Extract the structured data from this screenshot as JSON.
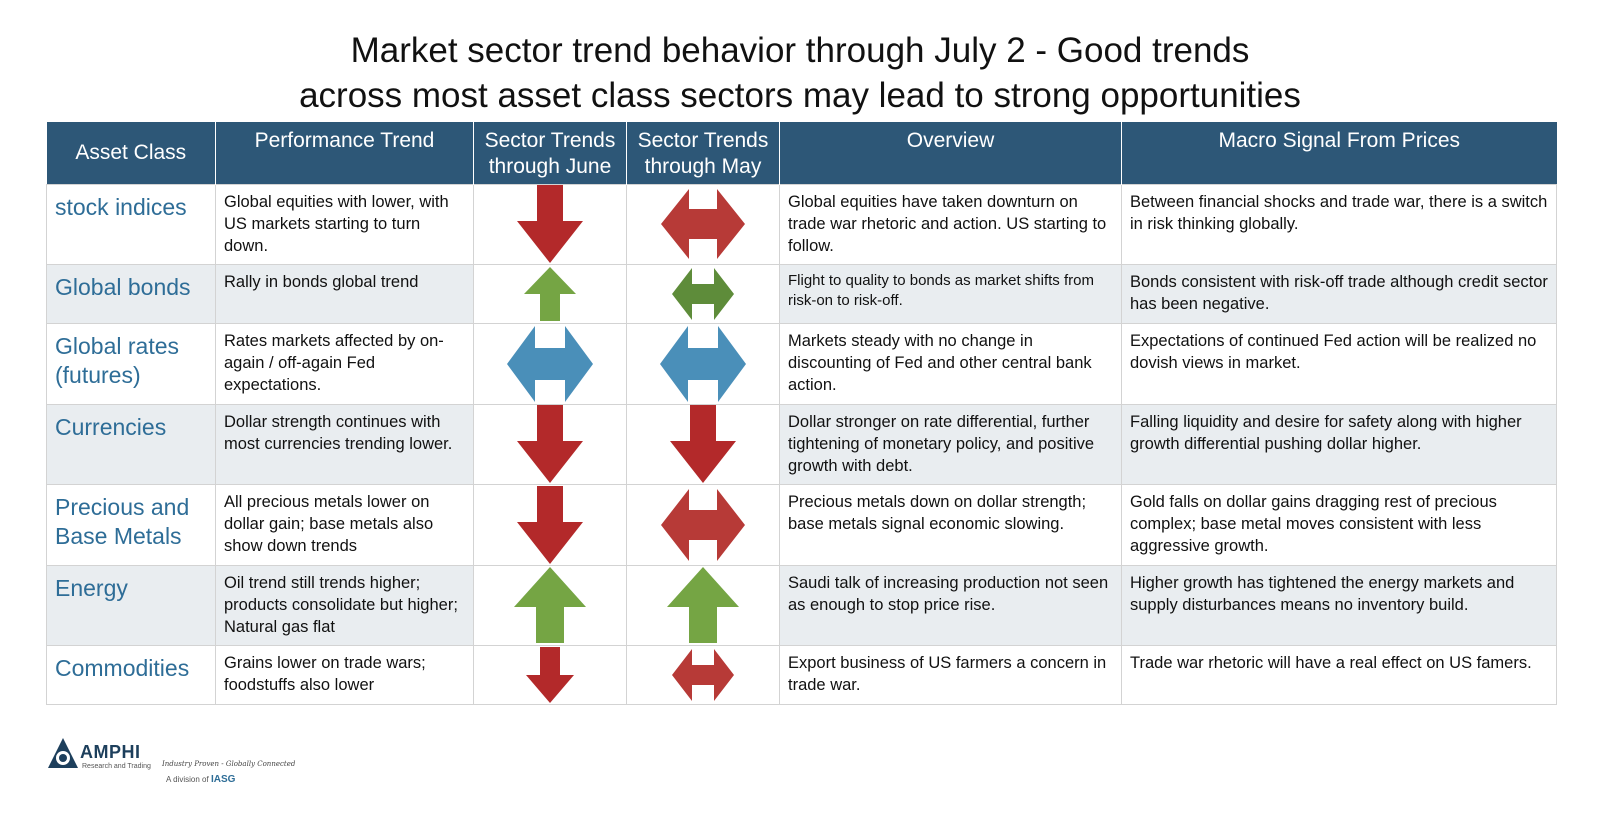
{
  "title": {
    "line1": "Market sector trend behavior through July 2 - Good trends",
    "line2": "across most asset class sectors may lead to strong opportunities"
  },
  "columns": {
    "asset": "Asset Class",
    "performance": "Performance Trend",
    "june_line1": "Sector Trends",
    "june_line2": "through June",
    "may_line1": "Sector Trends",
    "may_line2": "through May",
    "overview": "Overview",
    "macro": "Macro Signal From Prices"
  },
  "colors": {
    "header_bg": "#2d5777",
    "asset_text": "#2e6d97",
    "red_arrow": "#b3292a",
    "red_arrow_may": "#b73a37",
    "green_arrow": "#75a544",
    "dark_green_arrow": "#5e8c3a",
    "blue_arrow": "#4a8fb9"
  },
  "rows": [
    {
      "asset_line1": "stock indices",
      "asset_line2": "",
      "performance": "Global equities with lower, with US markets starting to turn down.",
      "june": {
        "icon": "down-arrow-icon",
        "color": "red"
      },
      "may": {
        "icon": "left-right-arrow-icon",
        "color": "red"
      },
      "overview": "Global equities have taken downturn on trade war rhetoric and action. US starting to follow.",
      "macro": "Between financial shocks and trade war, there is a switch in risk thinking globally."
    },
    {
      "asset_line1": "Global bonds",
      "asset_line2": "",
      "performance": "Rally in bonds global trend",
      "june": {
        "icon": "up-arrow-icon",
        "color": "green"
      },
      "may": {
        "icon": "left-right-arrow-icon",
        "color": "dark-green"
      },
      "overview": "Flight to quality to bonds as market shifts from risk-on to risk-off.",
      "macro": "Bonds consistent with risk-off trade although credit sector has been negative."
    },
    {
      "asset_line1": "Global rates",
      "asset_line2": "(futures)",
      "performance": "Rates markets affected by on-again / off-again Fed expectations.",
      "june": {
        "icon": "left-right-arrow-icon",
        "color": "blue"
      },
      "may": {
        "icon": "left-right-arrow-icon",
        "color": "blue"
      },
      "overview": "Markets steady with no change in discounting of Fed and other central bank action.",
      "macro": "Expectations of continued Fed action will be realized no dovish views in market."
    },
    {
      "asset_line1": "Currencies",
      "asset_line2": "",
      "performance": "Dollar strength continues with most currencies trending lower.",
      "june": {
        "icon": "down-arrow-icon",
        "color": "red"
      },
      "may": {
        "icon": "down-arrow-icon",
        "color": "red"
      },
      "overview": "Dollar stronger on rate differential, further tightening of monetary policy, and positive growth with debt.",
      "macro": "Falling liquidity and desire for safety along with higher growth differential pushing dollar higher."
    },
    {
      "asset_line1": "Precious and",
      "asset_line2": "Base Metals",
      "performance": "All precious metals lower on dollar gain; base metals also show down trends",
      "june": {
        "icon": "down-arrow-icon",
        "color": "red"
      },
      "may": {
        "icon": "left-right-arrow-icon",
        "color": "red"
      },
      "overview": "Precious metals down on dollar strength; base metals signal economic slowing.",
      "macro": "Gold falls on dollar gains dragging rest of precious complex; base metal moves consistent with less aggressive growth."
    },
    {
      "asset_line1": "Energy",
      "asset_line2": "",
      "performance": "Oil trend still trends higher; products consolidate but higher; Natural gas flat",
      "june": {
        "icon": "up-arrow-icon",
        "color": "green"
      },
      "may": {
        "icon": "up-arrow-icon",
        "color": "green"
      },
      "overview": "Saudi talk of increasing production not seen as enough to stop price rise.",
      "macro": "Higher growth has tightened the energy markets and supply disturbances means no inventory build."
    },
    {
      "asset_line1": "Commodities",
      "asset_line2": "",
      "performance": "Grains lower on trade wars; foodstuffs also lower",
      "june": {
        "icon": "down-arrow-icon",
        "color": "red"
      },
      "may": {
        "icon": "left-right-arrow-icon",
        "color": "red"
      },
      "overview": "Export business of US farmers a concern in trade war.",
      "macro": "Trade war rhetoric will have a real effect on US famers."
    }
  ],
  "footer": {
    "logo": "AMPHI",
    "logo_sub": "Research and Trading",
    "tagline": "Industry Proven - Globally Connected",
    "division_prefix": "A division of",
    "division_name": "IASG"
  }
}
